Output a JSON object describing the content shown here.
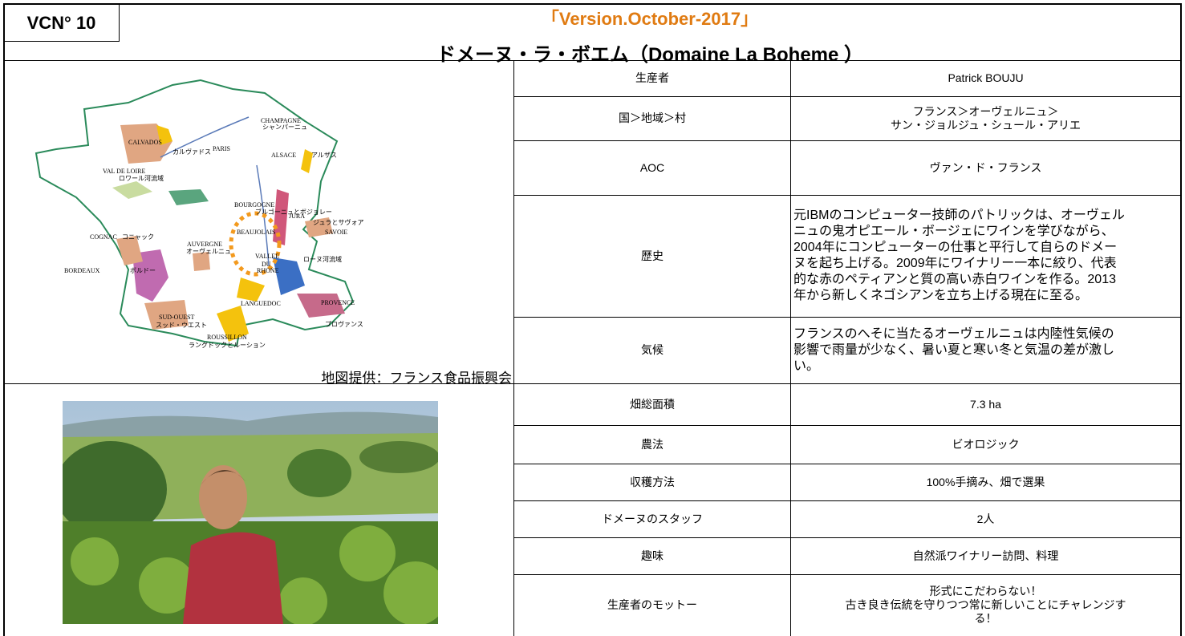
{
  "header": {
    "id": "VCN° 10",
    "version": "「Version.October-2017」",
    "title": "ドメーヌ・ラ・ボエム（Domaine La Boheme ）"
  },
  "map": {
    "credit": "地図提供：フランス食品振興会",
    "labels": [
      "CHAMPAGNE",
      "シャンパーニュ",
      "ALSACE",
      "アルザス",
      "CALVADOS",
      "カルヴァドス",
      "PARIS",
      "VAL DE LOIRE",
      "ロワール河流域",
      "BOURGOGNE",
      "ブルゴーニュとボジョレー",
      "JURA",
      "ジュラとサヴォア",
      "SAVOIE",
      "BEAUJOLAIS",
      "COGNAC",
      "コニャック",
      "AUVERGNE",
      "オーヴェルニュ",
      "VALLEE",
      "DU",
      "RHONE",
      "ローヌ河流域",
      "BORDEAUX",
      "ボルドー",
      "LANGUEDOC",
      "PROVENCE",
      "プロヴァンス",
      "SUD-OUEST",
      "スッド・ウエスト",
      "ROUSSILLON",
      "ラングドックとルーション"
    ]
  },
  "table": {
    "rows": [
      {
        "label": "生産者",
        "value": [
          "Patrick BOUJU"
        ]
      },
      {
        "label": "国＞地域＞村",
        "value": [
          "フランス＞オーヴェルニュ＞",
          "サン・ジョルジュ・シュール・アリエ"
        ]
      },
      {
        "label": "AOC",
        "value": [
          "ヴァン・ド・フランス"
        ]
      },
      {
        "label": "歴史",
        "value": [
          "元IBMのコンピューター技師のパトリックは、オーヴェル",
          "ニュの鬼才ピエール・ボージェにワインを学びながら、",
          "2004年にコンピューターの仕事と平行して自らのドメー",
          "ヌを起ち上げる。2009年にワイナリー一本に絞り、代表",
          "的な赤のペティアンと質の高い赤白ワインを作る。2013",
          "年から新しくネゴシアンを立ち上げる現在に至る。"
        ]
      },
      {
        "label": "気候",
        "value": [
          "フランスのへそに当たるオーヴェルニュは内陸性気候の",
          "影響で雨量が少なく、暑い夏と寒い冬と気温の差が激し",
          "い。"
        ]
      },
      {
        "label": "畑総面積",
        "value": [
          "7.3 ha"
        ]
      },
      {
        "label": "農法",
        "value": [
          "ビオロジック"
        ]
      },
      {
        "label": "収穫方法",
        "value": [
          "100%手摘み、畑で選果"
        ]
      },
      {
        "label": "ドメーヌのスタッフ",
        "value": [
          "2人"
        ]
      },
      {
        "label": "趣味",
        "value": [
          "自然派ワイナリー訪問、料理"
        ]
      },
      {
        "label": "生産者のモットー",
        "value": [
          "形式にこだわらない！",
          "古き良き伝統を守りつつ常に新しいことにチャレンジす",
          "る！"
        ]
      }
    ]
  }
}
